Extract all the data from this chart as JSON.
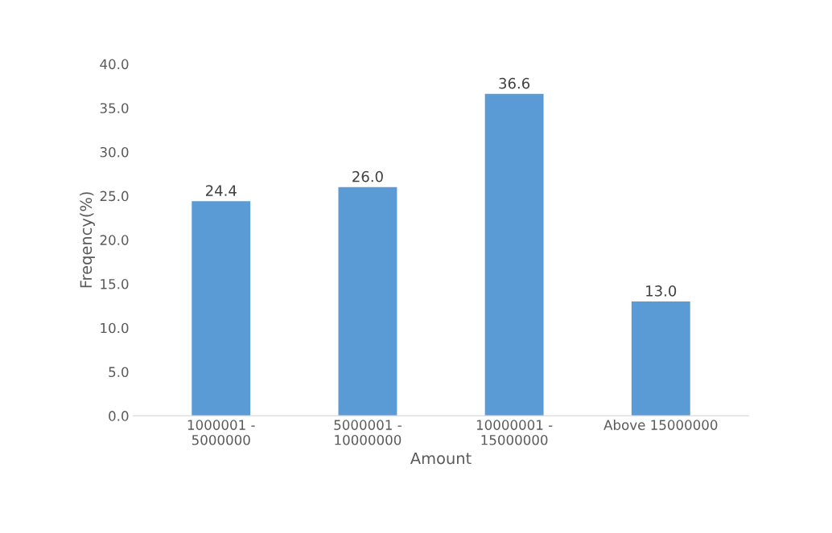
{
  "chart_data": {
    "type": "bar",
    "xlabel": "Amount",
    "ylabel": "Freqency(%)",
    "categories": [
      "1000001 -\n5000000",
      "5000001 -\n10000000",
      "10000001 -\n15000000",
      "Above 15000000"
    ],
    "values": [
      24.4,
      26.0,
      36.6,
      13.0
    ],
    "value_labels": [
      "24.4",
      "26.0",
      "36.6",
      "13.0"
    ],
    "color": "#5b9bd5",
    "ylim": [
      0,
      40
    ],
    "yticks": [
      {
        "value": 0,
        "label": "0.0"
      },
      {
        "value": 5,
        "label": "5.0"
      },
      {
        "value": 10,
        "label": "10.0"
      },
      {
        "value": 15,
        "label": "15.0"
      },
      {
        "value": 20,
        "label": "20.0"
      },
      {
        "value": 25,
        "label": "25.0"
      },
      {
        "value": 30,
        "label": "30.0"
      },
      {
        "value": 35,
        "label": "35.0"
      },
      {
        "value": 40,
        "label": "40.0"
      }
    ],
    "grid": false,
    "legend": false
  }
}
